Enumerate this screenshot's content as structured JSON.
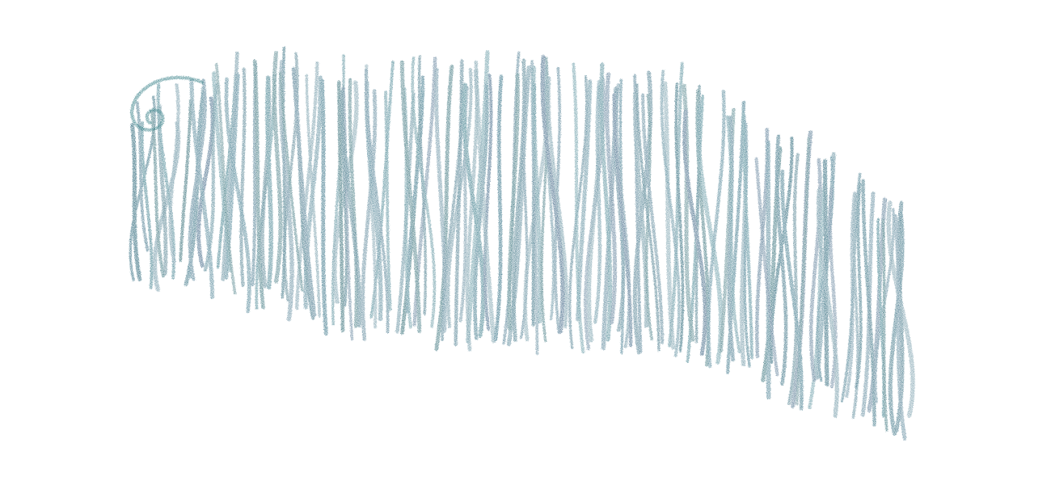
{
  "artwork": {
    "subject": "crayon-grass-strokes",
    "medium": "chalk-pastel",
    "background_color": "#ffffff",
    "stroke_palette": [
      "#1e5d72",
      "#2b6a80",
      "#17576b",
      "#3b6f86",
      "#2f7483",
      "#345e7e",
      "#4a7d8f",
      "#20606a"
    ],
    "accent_curl_color": "#2d7a82",
    "has_curl_flourish": true
  }
}
